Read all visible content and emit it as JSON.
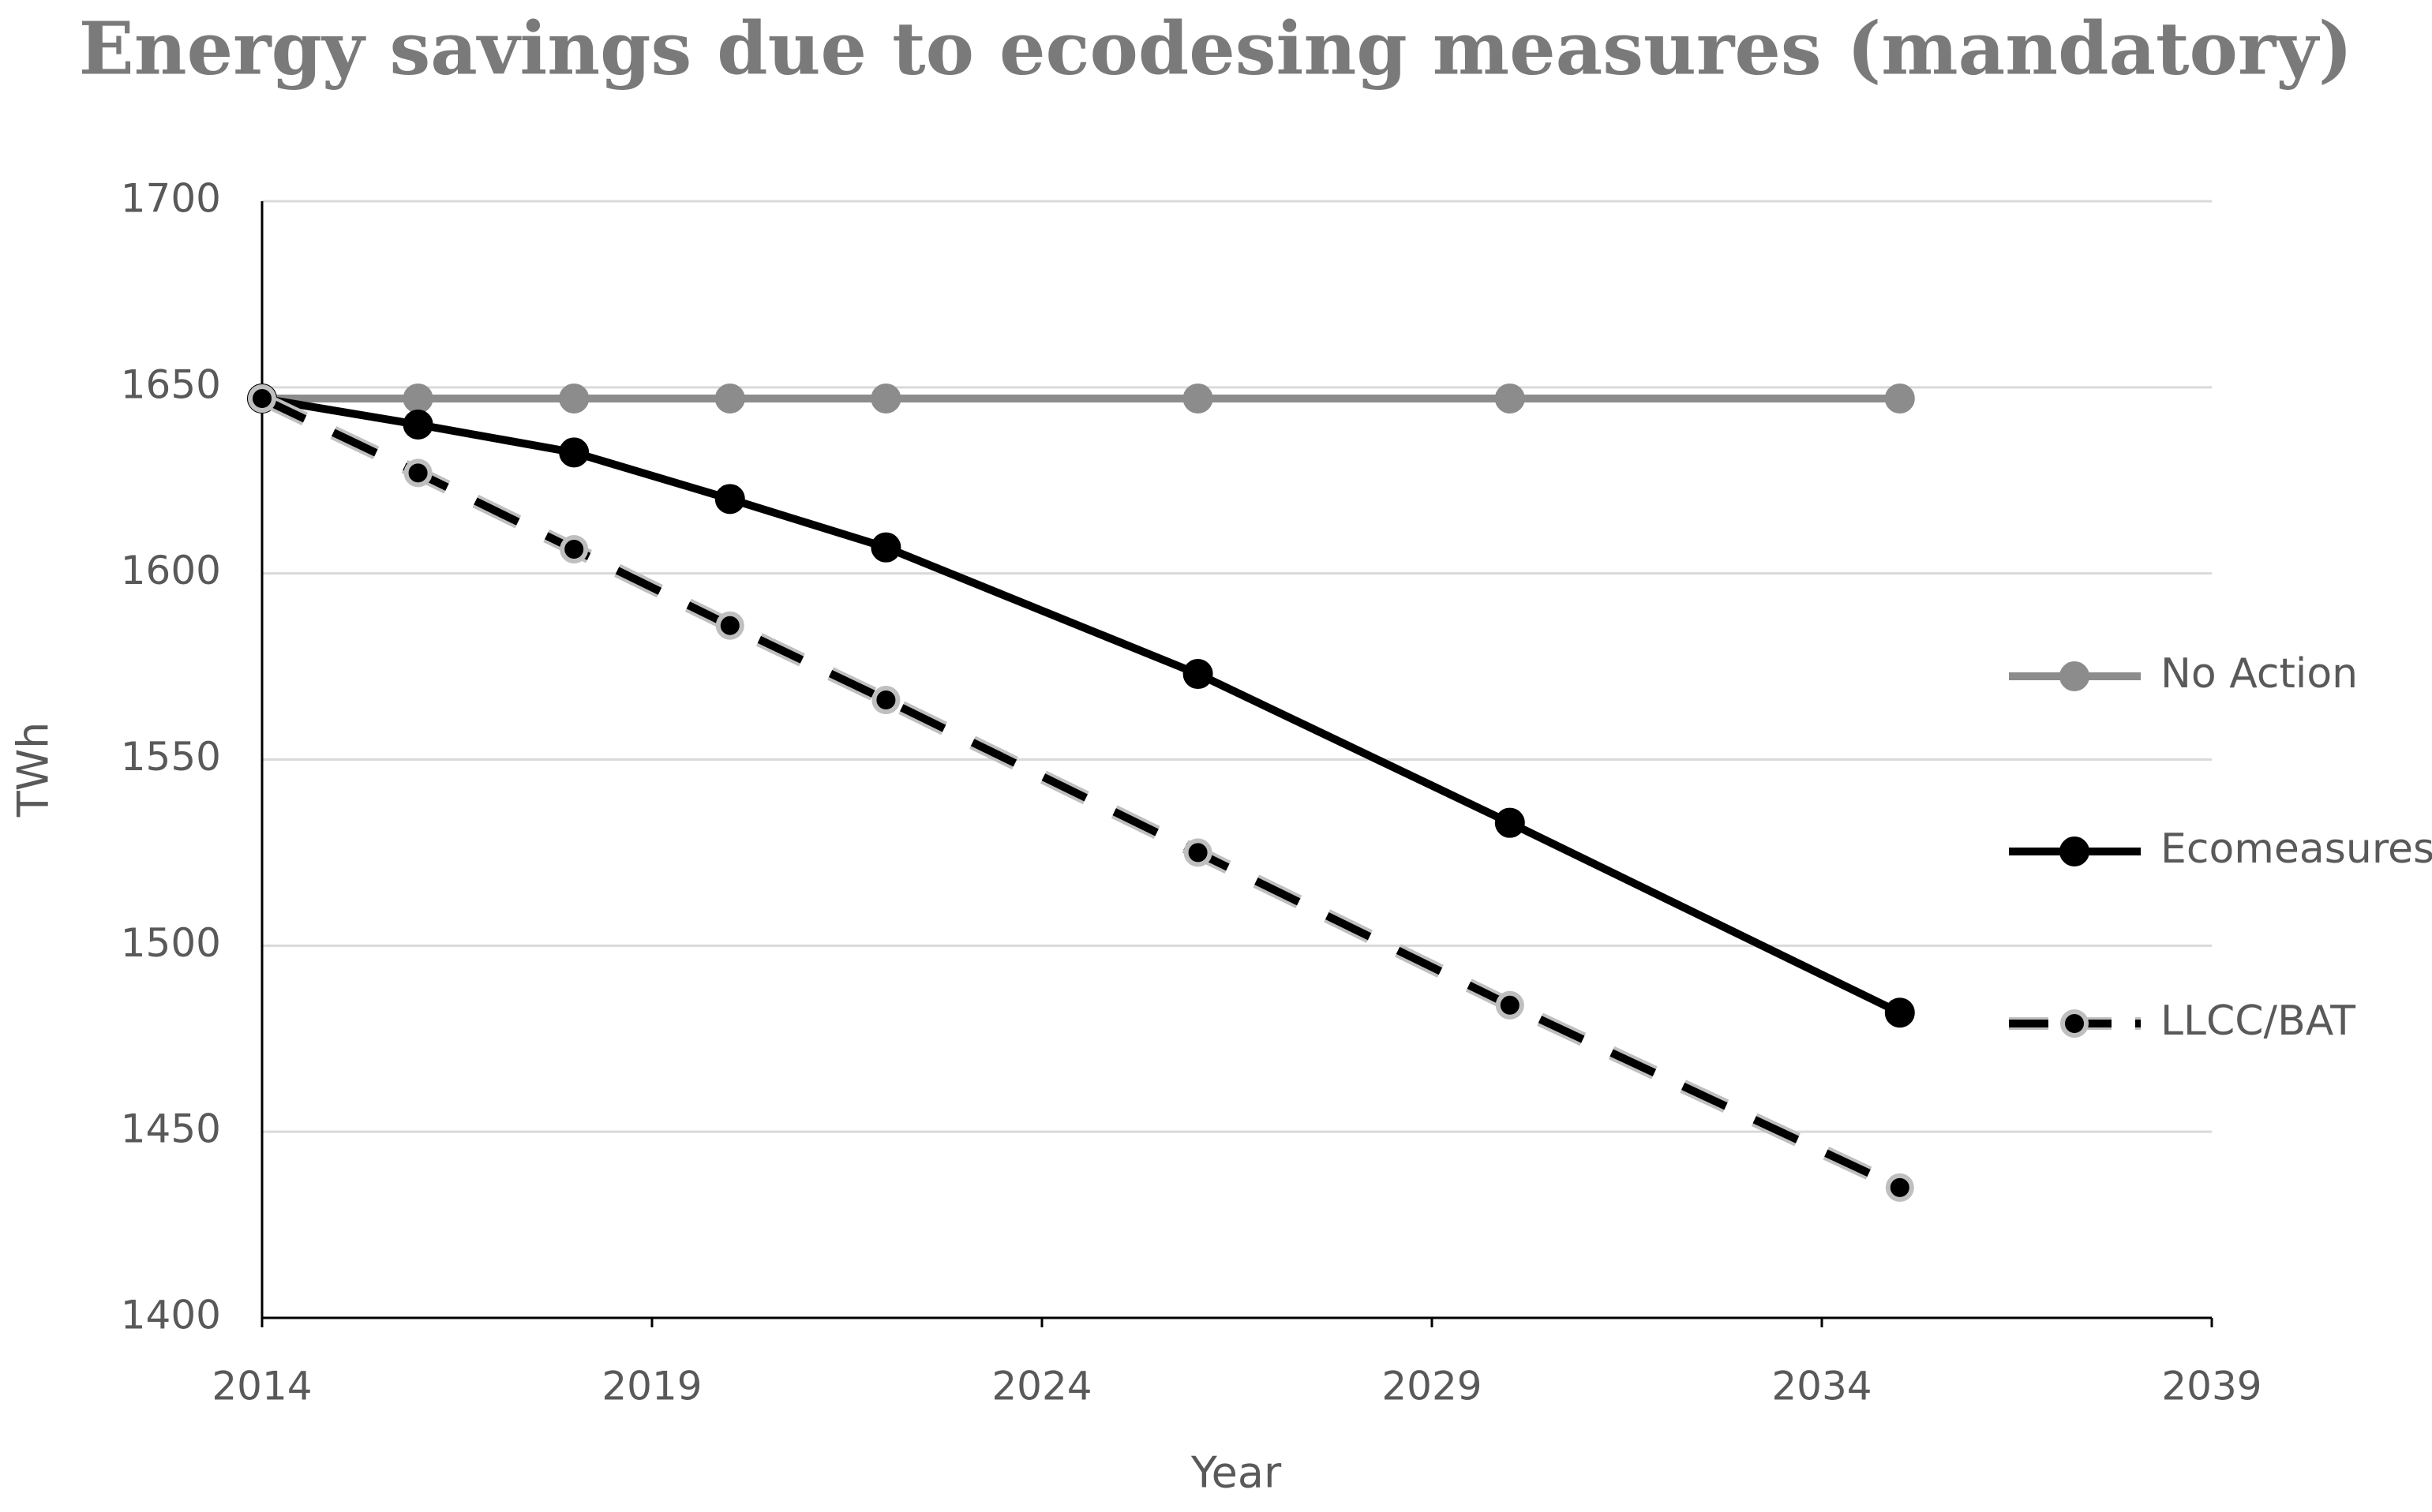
{
  "chart_data": {
    "type": "line",
    "title": "Energy savings due to ecodesing measures (mandatory)",
    "x_label": "Year",
    "y_label": "TWh",
    "x": [
      2014,
      2016,
      2018,
      2020,
      2022,
      2026,
      2030,
      2035
    ],
    "series": [
      {
        "name": "No Action",
        "color": "#8c8c8c",
        "line_style": "solid",
        "values": [
          1647,
          1647,
          1647,
          1647,
          1647,
          1647,
          1647,
          1647
        ]
      },
      {
        "name": "Ecomeasures",
        "color": "#000000",
        "line_style": "solid",
        "values": [
          1647,
          1640,
          1632.5,
          1620,
          1607,
          1573,
          1533,
          1482
        ]
      },
      {
        "name": "LLCC/BAT",
        "color": "#000000",
        "line_style": "dashed",
        "values": [
          1647,
          1627,
          1606.5,
          1586,
          1566,
          1525,
          1484,
          1435
        ]
      }
    ],
    "xlim": [
      2014,
      2039
    ],
    "xticks": [
      2014,
      2019,
      2024,
      2029,
      2034,
      2039
    ],
    "ylim": [
      1400,
      1700
    ],
    "yticks": [
      1400,
      1450,
      1500,
      1550,
      1600,
      1650,
      1700
    ],
    "grid": true,
    "legend": "right"
  }
}
